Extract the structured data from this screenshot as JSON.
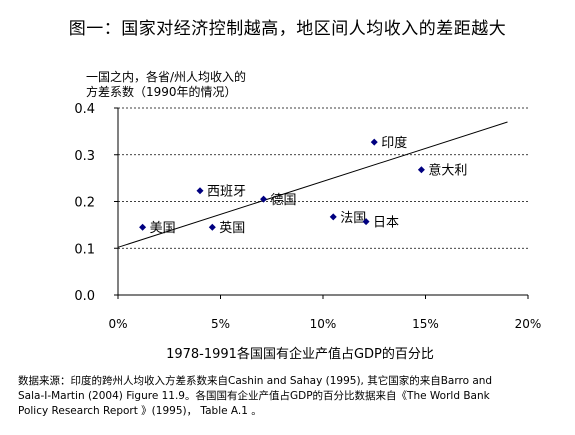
{
  "title": "图一：国家对经济控制越高，地区间人均收入的差距越大",
  "chart_data": {
    "type": "scatter",
    "ylabel_lines": [
      "一国之内，各省/州人均收入的",
      "方差系数（1990年的情况）"
    ],
    "xlabel": "1978-1991各国国有企业产值占GDP的百分比",
    "xlim": [
      0,
      20
    ],
    "ylim": [
      0,
      0.4
    ],
    "x_ticks": [
      0,
      5,
      10,
      15,
      20
    ],
    "x_tick_labels": [
      "0%",
      "5%",
      "10%",
      "15%",
      "20%"
    ],
    "y_ticks": [
      0,
      0.1,
      0.2,
      0.3,
      0.4
    ],
    "y_tick_labels": [
      "0.0",
      "0.1",
      "0.2",
      "0.3",
      "0.4"
    ],
    "grid": "horizontal-dashed",
    "points": [
      {
        "label": "美国",
        "x": 1.2,
        "y": 0.145
      },
      {
        "label": "西班牙",
        "x": 4.0,
        "y": 0.223
      },
      {
        "label": "英国",
        "x": 4.6,
        "y": 0.145
      },
      {
        "label": "德国",
        "x": 7.1,
        "y": 0.205
      },
      {
        "label": "法国",
        "x": 10.5,
        "y": 0.167
      },
      {
        "label": "日本",
        "x": 12.1,
        "y": 0.157
      },
      {
        "label": "印度",
        "x": 12.5,
        "y": 0.327
      },
      {
        "label": "意大利",
        "x": 14.8,
        "y": 0.268
      }
    ],
    "trendline": {
      "x": [
        0,
        19
      ],
      "y": [
        0.102,
        0.37
      ]
    },
    "marker_color": "#000080"
  },
  "source_lines": [
    "数据来源：印度的跨州人均收入方差系数来自Cashin and Sahay (1995), 其它国家的来自Barro and",
    "Sala-I-Martin (2004) Figure 11.9。各国国有企业产值占GDP的百分比数据来自《The World Bank",
    "Policy Research Report 》(1995)， Table A.1 。"
  ]
}
